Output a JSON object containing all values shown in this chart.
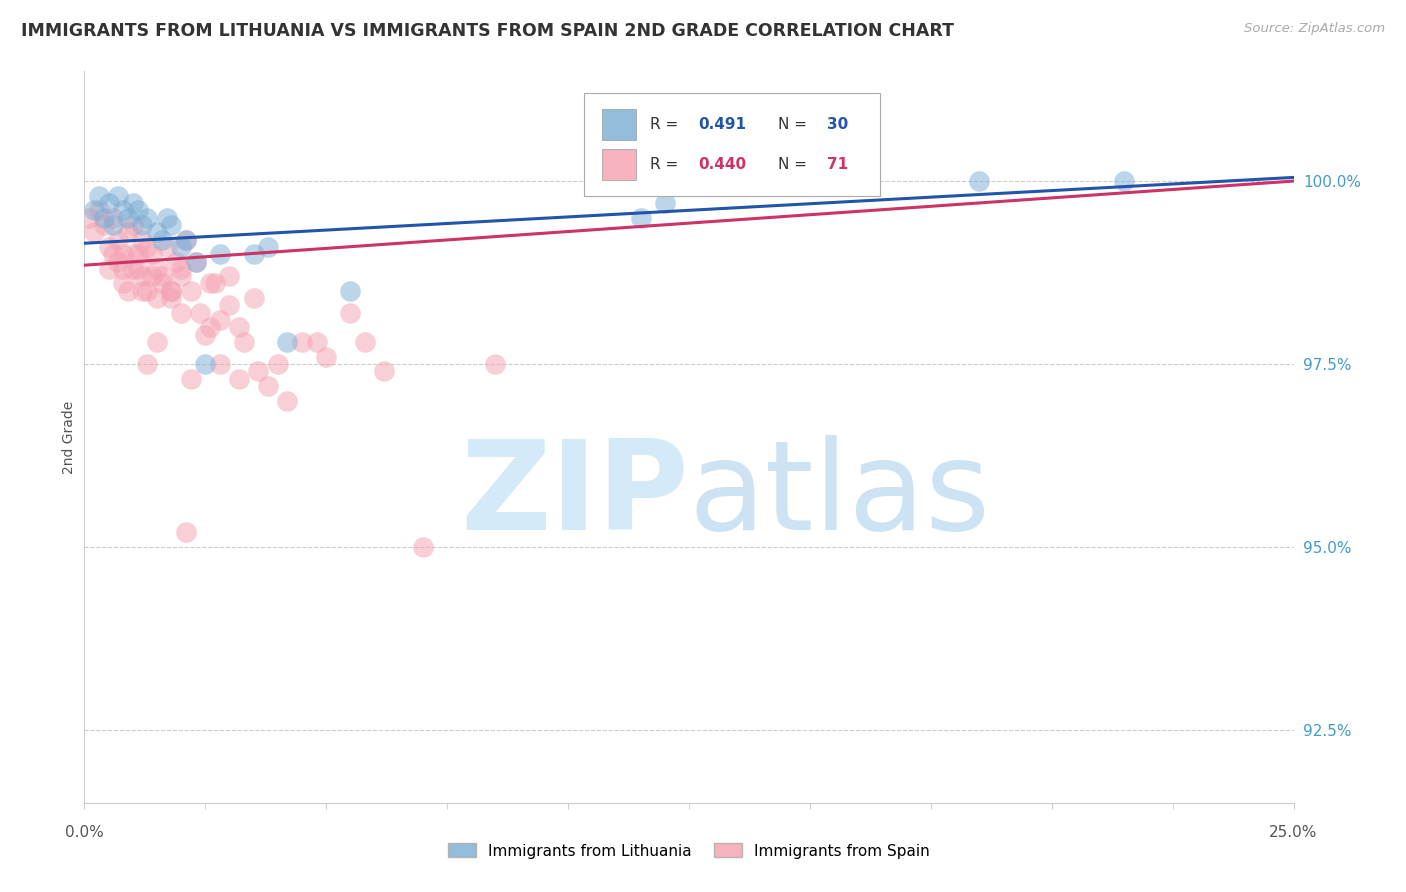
{
  "title": "IMMIGRANTS FROM LITHUANIA VS IMMIGRANTS FROM SPAIN 2ND GRADE CORRELATION CHART",
  "source": "Source: ZipAtlas.com",
  "ylabel": "2nd Grade",
  "xlim": [
    0.0,
    25.0
  ],
  "ylim": [
    91.5,
    101.5
  ],
  "yticks": [
    92.5,
    95.0,
    97.5,
    100.0
  ],
  "ytick_labels": [
    "92.5%",
    "95.0%",
    "97.5%",
    "100.0%"
  ],
  "legend_label_blue": "Immigrants from Lithuania",
  "legend_label_pink": "Immigrants from Spain",
  "R_blue": 0.491,
  "N_blue": 30,
  "R_pink": 0.44,
  "N_pink": 71,
  "blue_color": "#7aadd4",
  "pink_color": "#f4a0b0",
  "blue_line_color": "#2255aa",
  "pink_line_color": "#cc3366",
  "blue_scatter_x": [
    0.2,
    0.3,
    0.4,
    0.5,
    0.6,
    0.7,
    0.8,
    0.9,
    1.0,
    1.1,
    1.2,
    1.3,
    1.5,
    1.6,
    1.7,
    1.8,
    2.0,
    2.1,
    2.3,
    2.5,
    2.8,
    3.5,
    3.8,
    4.2,
    5.5,
    11.5,
    18.5,
    21.5,
    12.0,
    14.5
  ],
  "blue_scatter_y": [
    99.6,
    99.8,
    99.5,
    99.7,
    99.4,
    99.8,
    99.6,
    99.5,
    99.7,
    99.6,
    99.4,
    99.5,
    99.3,
    99.2,
    99.5,
    99.4,
    99.1,
    99.2,
    98.9,
    97.5,
    99.0,
    99.0,
    99.1,
    97.8,
    98.5,
    99.5,
    100.0,
    100.0,
    99.7,
    100.0
  ],
  "pink_scatter_x": [
    0.1,
    0.2,
    0.3,
    0.4,
    0.5,
    0.5,
    0.6,
    0.7,
    0.7,
    0.8,
    0.8,
    0.9,
    0.9,
    1.0,
    1.0,
    1.1,
    1.2,
    1.2,
    1.3,
    1.3,
    1.4,
    1.5,
    1.5,
    1.6,
    1.7,
    1.8,
    1.9,
    2.0,
    2.0,
    2.1,
    2.2,
    2.3,
    2.5,
    2.6,
    2.8,
    3.0,
    3.2,
    3.5,
    3.8,
    4.0,
    4.2,
    4.5,
    5.0,
    5.5,
    1.8,
    2.4,
    2.7,
    3.0,
    3.3,
    3.6,
    0.6,
    0.8,
    1.0,
    1.1,
    1.2,
    1.4,
    1.6,
    1.8,
    2.0,
    1.3,
    2.2,
    1.5,
    2.8,
    8.5,
    5.8,
    6.2,
    7.0,
    4.8,
    3.2,
    2.6,
    2.1
  ],
  "pink_scatter_y": [
    99.5,
    99.3,
    99.6,
    99.4,
    99.1,
    98.8,
    99.5,
    99.2,
    98.9,
    99.0,
    98.6,
    99.3,
    98.5,
    99.4,
    98.8,
    99.0,
    99.2,
    98.7,
    99.1,
    98.5,
    99.0,
    98.8,
    98.4,
    98.7,
    99.1,
    98.5,
    98.9,
    98.8,
    98.2,
    99.2,
    98.5,
    98.9,
    97.9,
    98.6,
    98.1,
    98.7,
    98.0,
    98.4,
    97.2,
    97.5,
    97.0,
    97.8,
    97.6,
    98.2,
    98.5,
    98.2,
    98.6,
    98.3,
    97.8,
    97.4,
    99.0,
    98.8,
    99.0,
    98.8,
    98.5,
    98.7,
    98.6,
    98.4,
    98.7,
    97.5,
    97.3,
    97.8,
    97.5,
    97.5,
    97.8,
    97.4,
    95.0,
    97.8,
    97.3,
    98.0,
    95.2
  ]
}
